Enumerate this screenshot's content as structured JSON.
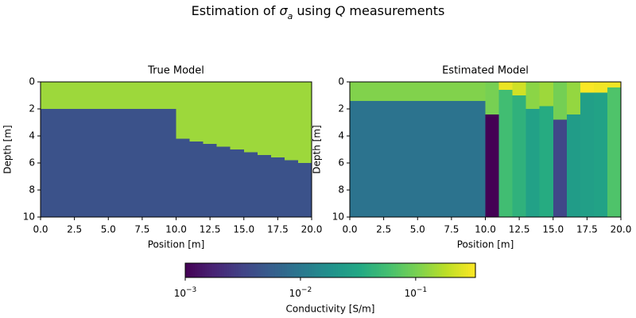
{
  "chart_data": {
    "type": "heatmap",
    "colormap": "viridis",
    "title_parts": [
      {
        "text": "Estimation of "
      },
      {
        "text": "σ",
        "italic": true
      },
      {
        "text": "a",
        "italic": true,
        "sub": true
      },
      {
        "text": " using "
      },
      {
        "text": "Q",
        "italic": true
      },
      {
        "text": " measurements"
      }
    ],
    "panels": [
      {
        "title": "True Model",
        "xlabel": "Position [m]",
        "ylabel": "Depth [m]",
        "xlim": [
          0,
          20
        ],
        "ylim": [
          10,
          0
        ],
        "xticks": [
          {
            "value": 0,
            "label": "0.0"
          },
          {
            "value": 2.5,
            "label": "2.5"
          },
          {
            "value": 5,
            "label": "5.0"
          },
          {
            "value": 7.5,
            "label": "7.5"
          },
          {
            "value": 10,
            "label": "10.0"
          },
          {
            "value": 12.5,
            "label": "12.5"
          },
          {
            "value": 15,
            "label": "15.0"
          },
          {
            "value": 17.5,
            "label": "17.5"
          },
          {
            "value": 20,
            "label": "20.0"
          }
        ],
        "yticks": [
          0,
          2,
          4,
          6,
          8,
          10
        ],
        "cells": [
          {
            "x": [
              0,
              10
            ],
            "depth": [
              0,
              2
            ],
            "value": 0.14
          },
          {
            "x": [
              0,
              10
            ],
            "depth": [
              2,
              10
            ],
            "value": 0.0043
          },
          {
            "x": [
              10,
              11
            ],
            "depth": [
              0,
              4.2
            ],
            "value": 0.14
          },
          {
            "x": [
              10,
              11
            ],
            "depth": [
              4.2,
              10
            ],
            "value": 0.0043
          },
          {
            "x": [
              11,
              12
            ],
            "depth": [
              0,
              4.4
            ],
            "value": 0.14
          },
          {
            "x": [
              11,
              12
            ],
            "depth": [
              4.4,
              10
            ],
            "value": 0.0043
          },
          {
            "x": [
              12,
              13
            ],
            "depth": [
              0,
              4.6
            ],
            "value": 0.14
          },
          {
            "x": [
              12,
              13
            ],
            "depth": [
              4.6,
              10
            ],
            "value": 0.0043
          },
          {
            "x": [
              13,
              14
            ],
            "depth": [
              0,
              4.8
            ],
            "value": 0.14
          },
          {
            "x": [
              13,
              14
            ],
            "depth": [
              4.8,
              10
            ],
            "value": 0.0043
          },
          {
            "x": [
              14,
              15
            ],
            "depth": [
              0,
              5.0
            ],
            "value": 0.14
          },
          {
            "x": [
              14,
              15
            ],
            "depth": [
              5.0,
              10
            ],
            "value": 0.0043
          },
          {
            "x": [
              15,
              16
            ],
            "depth": [
              0,
              5.2
            ],
            "value": 0.14
          },
          {
            "x": [
              15,
              16
            ],
            "depth": [
              5.2,
              10
            ],
            "value": 0.0043
          },
          {
            "x": [
              16,
              17
            ],
            "depth": [
              0,
              5.4
            ],
            "value": 0.14
          },
          {
            "x": [
              16,
              17
            ],
            "depth": [
              5.4,
              10
            ],
            "value": 0.0043
          },
          {
            "x": [
              17,
              18
            ],
            "depth": [
              0,
              5.6
            ],
            "value": 0.14
          },
          {
            "x": [
              17,
              18
            ],
            "depth": [
              5.6,
              10
            ],
            "value": 0.0043
          },
          {
            "x": [
              18,
              19
            ],
            "depth": [
              0,
              5.8
            ],
            "value": 0.14
          },
          {
            "x": [
              18,
              19
            ],
            "depth": [
              5.8,
              10
            ],
            "value": 0.0043
          },
          {
            "x": [
              19,
              20
            ],
            "depth": [
              0,
              6.0
            ],
            "value": 0.14
          },
          {
            "x": [
              19,
              20
            ],
            "depth": [
              6.0,
              10
            ],
            "value": 0.0043
          }
        ]
      },
      {
        "title": "Estimated Model",
        "xlabel": "Position [m]",
        "ylabel": "Depth [m]",
        "xlim": [
          0,
          20
        ],
        "ylim": [
          10,
          0
        ],
        "xticks": [
          {
            "value": 0,
            "label": "0.0"
          },
          {
            "value": 2.5,
            "label": "2.5"
          },
          {
            "value": 5,
            "label": "5.0"
          },
          {
            "value": 7.5,
            "label": "7.5"
          },
          {
            "value": 10,
            "label": "10.0"
          },
          {
            "value": 12.5,
            "label": "12.5"
          },
          {
            "value": 15,
            "label": "15.0"
          },
          {
            "value": 17.5,
            "label": "17.5"
          },
          {
            "value": 20,
            "label": "20.0"
          }
        ],
        "yticks": [
          0,
          2,
          4,
          6,
          8,
          10
        ],
        "cells": [
          {
            "x": [
              0,
              10
            ],
            "depth": [
              0,
              1.4
            ],
            "value": 0.11
          },
          {
            "x": [
              0,
              10
            ],
            "depth": [
              1.4,
              10
            ],
            "value": 0.0091
          },
          {
            "x": [
              10,
              11
            ],
            "depth": [
              0,
              2.4
            ],
            "value": 0.1
          },
          {
            "x": [
              10,
              11
            ],
            "depth": [
              2.4,
              10
            ],
            "value": 0.001
          },
          {
            "x": [
              11,
              12
            ],
            "depth": [
              0,
              0.6
            ],
            "value": 0.28
          },
          {
            "x": [
              11,
              12
            ],
            "depth": [
              0.6,
              10
            ],
            "value": 0.055
          },
          {
            "x": [
              12,
              13
            ],
            "depth": [
              0,
              1.0
            ],
            "value": 0.22
          },
          {
            "x": [
              12,
              13
            ],
            "depth": [
              1.0,
              10
            ],
            "value": 0.041
          },
          {
            "x": [
              13,
              14
            ],
            "depth": [
              0,
              2.0
            ],
            "value": 0.12
          },
          {
            "x": [
              13,
              14
            ],
            "depth": [
              2.0,
              10
            ],
            "value": 0.027
          },
          {
            "x": [
              14,
              15
            ],
            "depth": [
              0,
              1.8
            ],
            "value": 0.14
          },
          {
            "x": [
              14,
              15
            ],
            "depth": [
              1.8,
              10
            ],
            "value": 0.035
          },
          {
            "x": [
              15,
              16
            ],
            "depth": [
              0,
              2.8
            ],
            "value": 0.097
          },
          {
            "x": [
              15,
              16
            ],
            "depth": [
              2.8,
              10
            ],
            "value": 0.0034
          },
          {
            "x": [
              16,
              17
            ],
            "depth": [
              0,
              2.4
            ],
            "value": 0.13
          },
          {
            "x": [
              16,
              17
            ],
            "depth": [
              2.4,
              10
            ],
            "value": 0.024
          },
          {
            "x": [
              17,
              18
            ],
            "depth": [
              0,
              0.8
            ],
            "value": 0.32
          },
          {
            "x": [
              17,
              18
            ],
            "depth": [
              0.8,
              10
            ],
            "value": 0.026
          },
          {
            "x": [
              18,
              19
            ],
            "depth": [
              0,
              0.8
            ],
            "value": 0.3
          },
          {
            "x": [
              18,
              19
            ],
            "depth": [
              0.8,
              10
            ],
            "value": 0.028
          },
          {
            "x": [
              19,
              20
            ],
            "depth": [
              0,
              0.4
            ],
            "value": 0.3
          },
          {
            "x": [
              19,
              20
            ],
            "depth": [
              0.4,
              10
            ],
            "value": 0.065
          }
        ]
      }
    ],
    "colorbar": {
      "label": "Conductivity [S/m]",
      "scale": "log",
      "lim": [
        0.001,
        0.33
      ],
      "ticks": [
        {
          "value": 0.001,
          "label": "10",
          "exponent": "−3"
        },
        {
          "value": 0.01,
          "label": "10",
          "exponent": "−2"
        },
        {
          "value": 0.1,
          "label": "10",
          "exponent": "−1"
        }
      ]
    }
  }
}
